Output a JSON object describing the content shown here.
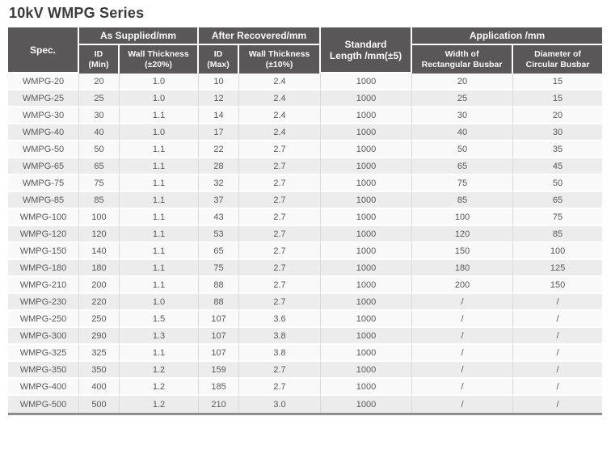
{
  "page_title": "10kV WMPG Series",
  "colors": {
    "header_bg": "#595757",
    "header_text": "#fbfbfb",
    "row_light": "#f9f9f9",
    "row_dark": "#ececec",
    "grid_line": "#d9d9d9",
    "table_bottom_border": "#8d8d8d",
    "title_text": "#3a3a3a",
    "cell_text": "#58595b"
  },
  "table": {
    "column_keys": [
      "spec",
      "id_min",
      "wall_thickness_20",
      "id_max",
      "wall_thickness_10",
      "standard_length",
      "width_rectangular_busbar",
      "diameter_circular_busbar"
    ],
    "headers": {
      "spec": "Spec.",
      "as_supplied_group": "As Supplied/mm",
      "after_recovered_group": "After Recovered/mm",
      "application_group": "Application /mm",
      "standard_length_line1": "Standard",
      "standard_length_line2": "Length /mm(±5)",
      "id_min_line1": "ID",
      "id_min_line2": "(Min)",
      "wall_thickness_20_line1": "Wall Thickness",
      "wall_thickness_20_line2": "(±20%)",
      "id_max_line1": "ID",
      "id_max_line2": "(Max)",
      "wall_thickness_10_line1": "Wall Thickness",
      "wall_thickness_10_line2": "(±10%)",
      "width_rect_line1": "Width of",
      "width_rect_line2": "Rectangular Busbar",
      "diameter_circ_line1": "Diameter of",
      "diameter_circ_line2": "Circular Busbar"
    },
    "rows": [
      [
        "WMPG-20",
        "20",
        "1.0",
        "10",
        "2.4",
        "1000",
        "20",
        "15"
      ],
      [
        "WMPG-25",
        "25",
        "1.0",
        "12",
        "2.4",
        "1000",
        "25",
        "15"
      ],
      [
        "WMPG-30",
        "30",
        "1.1",
        "14",
        "2.4",
        "1000",
        "30",
        "20"
      ],
      [
        "WMPG-40",
        "40",
        "1.0",
        "17",
        "2.4",
        "1000",
        "40",
        "30"
      ],
      [
        "WMPG-50",
        "50",
        "1.1",
        "22",
        "2.7",
        "1000",
        "50",
        "35"
      ],
      [
        "WMPG-65",
        "65",
        "1.1",
        "28",
        "2.7",
        "1000",
        "65",
        "45"
      ],
      [
        "WMPG-75",
        "75",
        "1.1",
        "32",
        "2.7",
        "1000",
        "75",
        "50"
      ],
      [
        "WMPG-85",
        "85",
        "1.1",
        "37",
        "2.7",
        "1000",
        "85",
        "65"
      ],
      [
        "WMPG-100",
        "100",
        "1.1",
        "43",
        "2.7",
        "1000",
        "100",
        "75"
      ],
      [
        "WMPG-120",
        "120",
        "1.1",
        "53",
        "2.7",
        "1000",
        "120",
        "85"
      ],
      [
        "WMPG-150",
        "140",
        "1.1",
        "65",
        "2.7",
        "1000",
        "150",
        "100"
      ],
      [
        "WMPG-180",
        "180",
        "1.1",
        "75",
        "2.7",
        "1000",
        "180",
        "125"
      ],
      [
        "WMPG-210",
        "200",
        "1.1",
        "88",
        "2.7",
        "1000",
        "200",
        "150"
      ],
      [
        "WMPG-230",
        "220",
        "1.0",
        "88",
        "2.7",
        "1000",
        "/",
        "/"
      ],
      [
        "WMPG-250",
        "250",
        "1.5",
        "107",
        "3.6",
        "1000",
        "/",
        "/"
      ],
      [
        "WMPG-300",
        "290",
        "1.3",
        "107",
        "3.8",
        "1000",
        "/",
        "/"
      ],
      [
        "WMPG-325",
        "325",
        "1.1",
        "107",
        "3.8",
        "1000",
        "/",
        "/"
      ],
      [
        "WMPG-350",
        "350",
        "1.2",
        "159",
        "2.7",
        "1000",
        "/",
        "/"
      ],
      [
        "WMPG-400",
        "400",
        "1.2",
        "185",
        "2.7",
        "1000",
        "/",
        "/"
      ],
      [
        "WMPG-500",
        "500",
        "1.2",
        "210",
        "3.0",
        "1000",
        "/",
        "/"
      ]
    ]
  }
}
